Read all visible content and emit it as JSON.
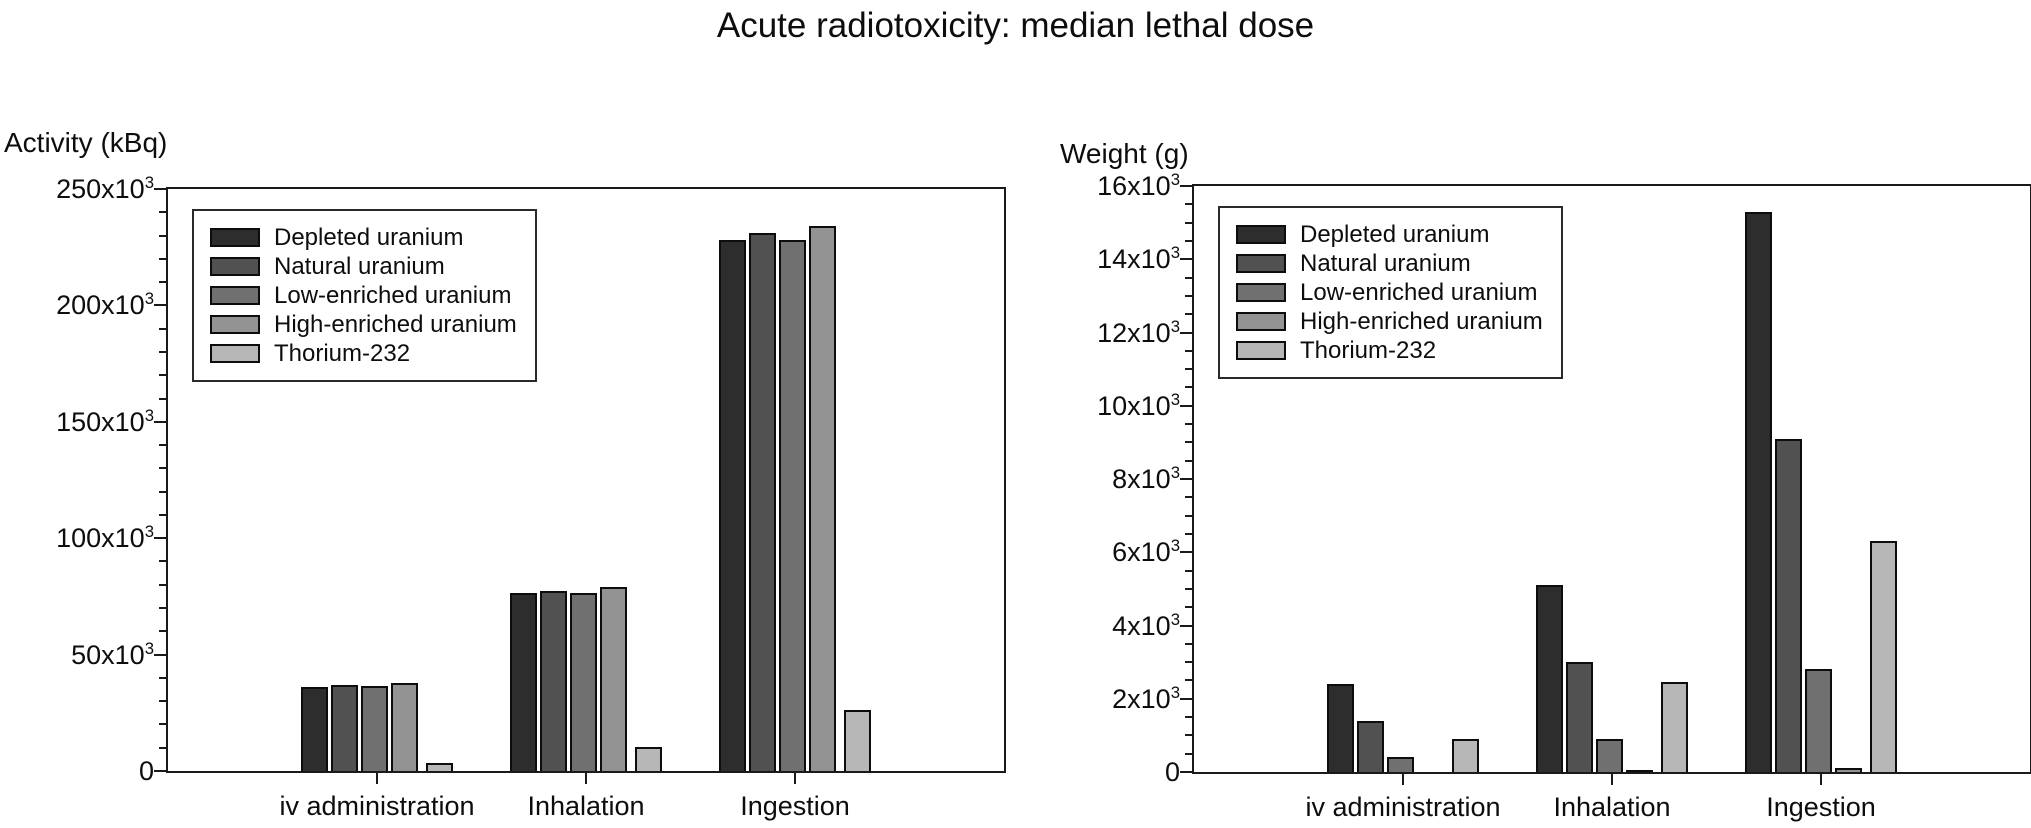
{
  "title": "Acute radiotoxicity: median lethal dose",
  "chart_data": [
    {
      "type": "bar",
      "ylabel": "Activity (kBq)",
      "categories": [
        "iv administration",
        "Inhalation",
        "Ingestion"
      ],
      "series": [
        {
          "name": "Depleted uranium",
          "color": "#2d2d2d",
          "values": [
            36000,
            76500,
            228000
          ]
        },
        {
          "name": "Natural uranium",
          "color": "#515151",
          "values": [
            37000,
            77500,
            231000
          ]
        },
        {
          "name": "Low-enriched uranium",
          "color": "#707070",
          "values": [
            36500,
            76500,
            228000
          ]
        },
        {
          "name": "High-enriched uranium",
          "color": "#939393",
          "values": [
            38000,
            79000,
            234000
          ]
        },
        {
          "name": "Thorium-232",
          "color": "#b7b7b7",
          "values": [
            3500,
            10500,
            26000
          ]
        }
      ],
      "ylim": [
        0,
        250000
      ],
      "ytick_step": 50000,
      "yminor_divisions": 5,
      "ytick_labels": [
        "0",
        "50x10^3",
        "100x10^3",
        "150x10^3",
        "200x10^3",
        "250x10^3"
      ],
      "legend_position": "upper-left",
      "grid": false
    },
    {
      "type": "bar",
      "ylabel": "Weight (g)",
      "categories": [
        "iv administration",
        "Inhalation",
        "Ingestion"
      ],
      "series": [
        {
          "name": "Depleted uranium",
          "color": "#2d2d2d",
          "values": [
            2400,
            5100,
            15300
          ]
        },
        {
          "name": "Natural uranium",
          "color": "#515151",
          "values": [
            1400,
            3000,
            9100
          ]
        },
        {
          "name": "Low-enriched uranium",
          "color": "#707070",
          "values": [
            420,
            900,
            2800
          ]
        },
        {
          "name": "High-enriched uranium",
          "color": "#939393",
          "values": [
            10,
            60,
            110
          ]
        },
        {
          "name": "Thorium-232",
          "color": "#b7b7b7",
          "values": [
            900,
            2450,
            6300
          ]
        }
      ],
      "ylim": [
        0,
        16000
      ],
      "ytick_step": 2000,
      "yminor_divisions": 4,
      "ytick_labels": [
        "0",
        "2x10^3",
        "4x10^3",
        "6x10^3",
        "8x10^3",
        "10x10^3",
        "12x10^3",
        "14x10^3",
        "16x10^3"
      ],
      "legend_position": "upper-left",
      "grid": false
    }
  ]
}
